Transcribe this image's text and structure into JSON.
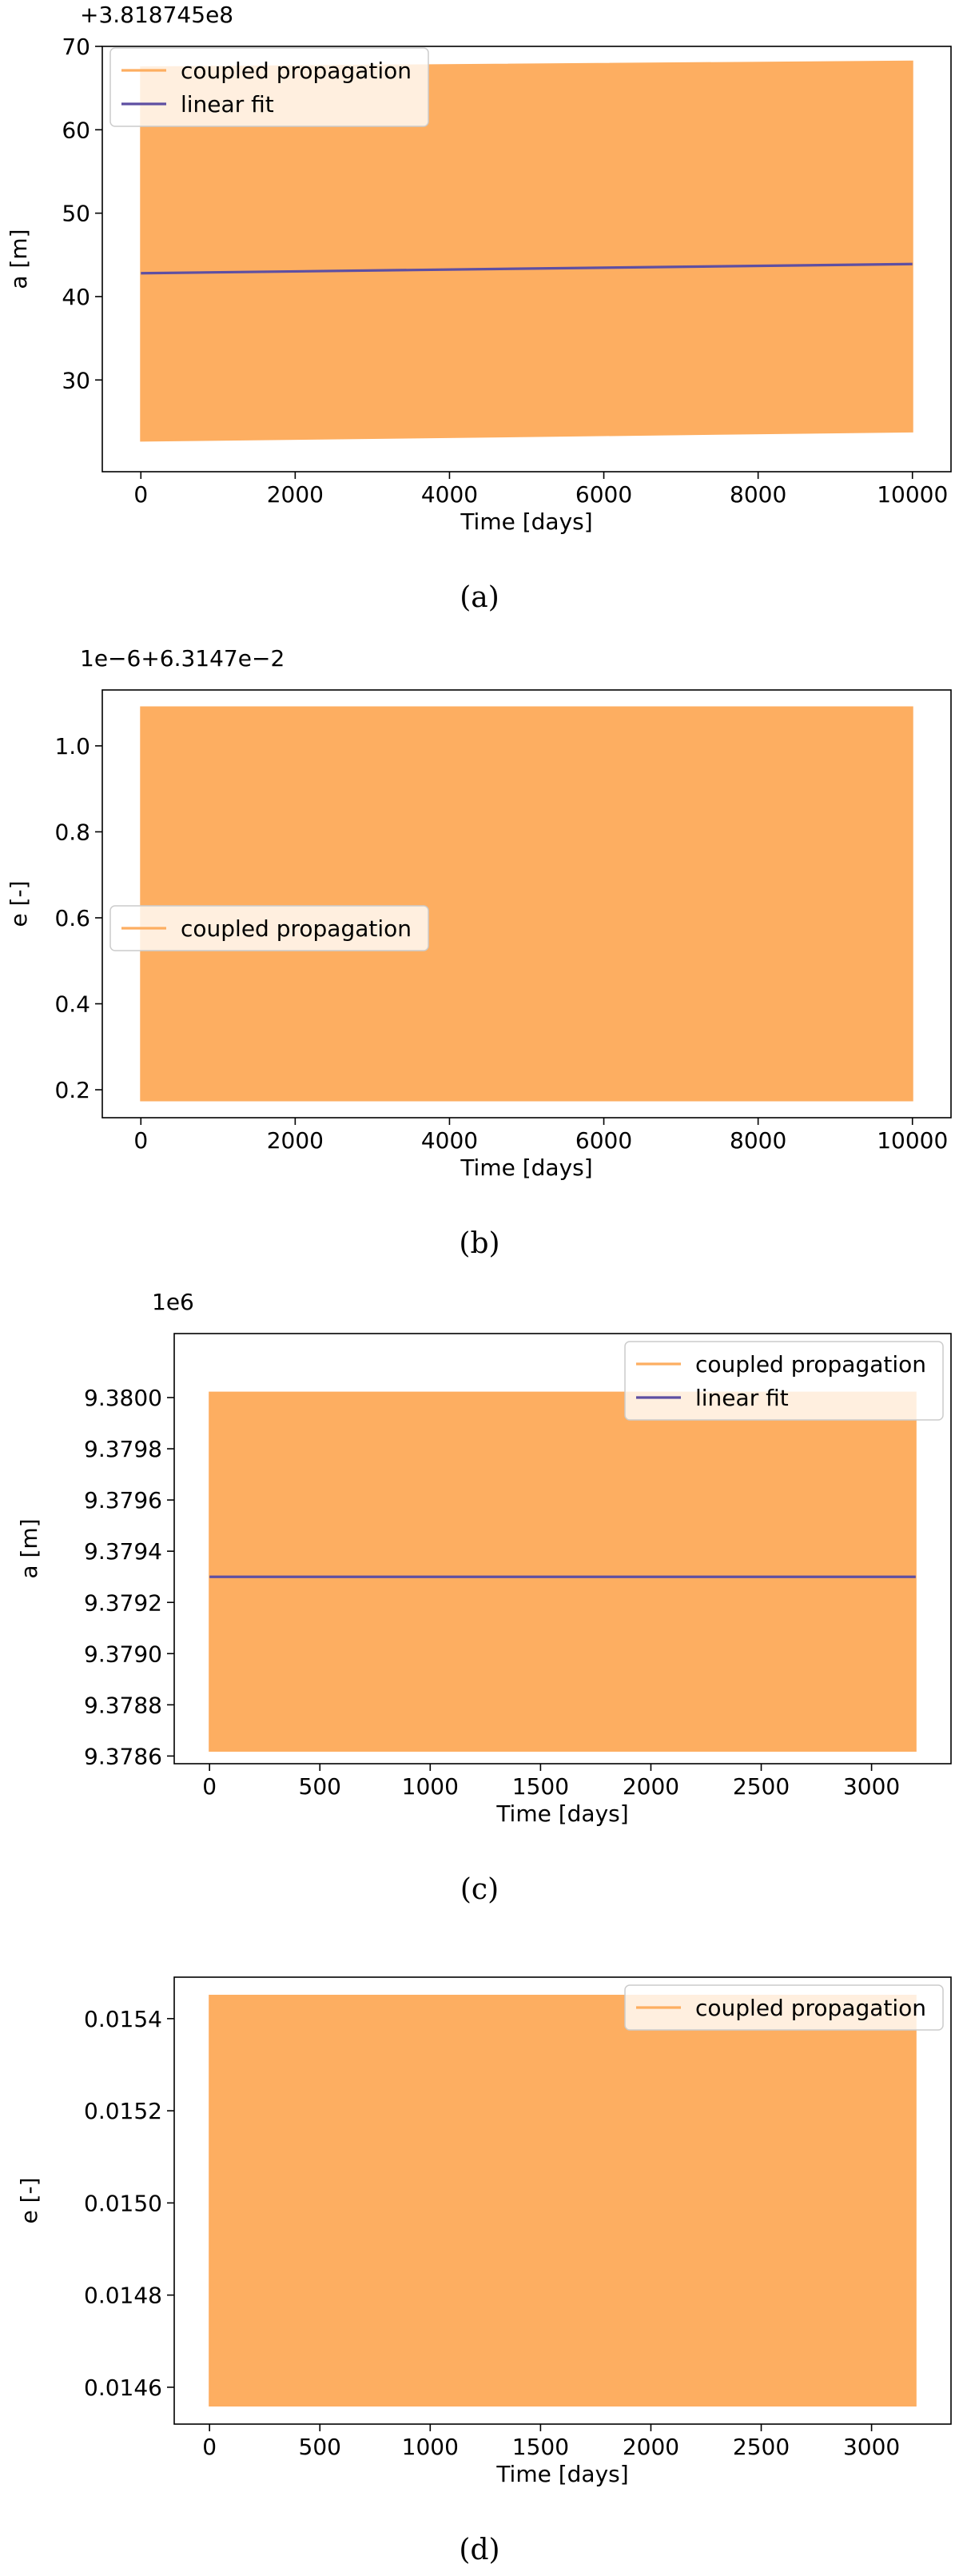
{
  "chart_data": [
    {
      "id": "a",
      "type": "area",
      "caption": "(a)",
      "offset_text": "+3.818745e8",
      "xlabel": "Time [days]",
      "ylabel": "a [m]",
      "xlim": [
        -500,
        10500
      ],
      "ylim": [
        19,
        70
      ],
      "xticks": [
        0,
        2000,
        4000,
        6000,
        8000,
        10000
      ],
      "xtick_labels": [
        "0",
        "2000",
        "4000",
        "6000",
        "8000",
        "10000"
      ],
      "yticks": [
        30,
        40,
        50,
        60,
        70
      ],
      "ytick_labels": [
        "30",
        "40",
        "50",
        "60",
        "70"
      ],
      "legend": {
        "position": "upper-left",
        "entries": [
          "coupled propagation",
          "linear fit"
        ]
      },
      "series": [
        {
          "name": "coupled propagation",
          "color": "#fdae61",
          "kind": "oscillation-band",
          "x": [
            0,
            10000
          ],
          "y_upper": [
            67.5,
            68.2
          ],
          "y_lower": [
            22.7,
            23.8
          ]
        },
        {
          "name": "linear fit",
          "color": "#5e4fa2",
          "kind": "line",
          "x": [
            0,
            10000
          ],
          "y": [
            42.8,
            43.9
          ]
        }
      ]
    },
    {
      "id": "b",
      "type": "area",
      "caption": "(b)",
      "offset_text": "1e−6+6.3147e−2",
      "xlabel": "Time [days]",
      "ylabel": "e [-]",
      "xlim": [
        -500,
        10500
      ],
      "ylim": [
        0.135,
        1.13
      ],
      "xticks": [
        0,
        2000,
        4000,
        6000,
        8000,
        10000
      ],
      "xtick_labels": [
        "0",
        "2000",
        "4000",
        "6000",
        "8000",
        "10000"
      ],
      "yticks": [
        0.2,
        0.4,
        0.6,
        0.8,
        1.0
      ],
      "ytick_labels": [
        "0.2",
        "0.4",
        "0.6",
        "0.8",
        "1.0"
      ],
      "legend": {
        "position": "center-left",
        "entries": [
          "coupled propagation"
        ]
      },
      "series": [
        {
          "name": "coupled propagation",
          "color": "#fdae61",
          "kind": "oscillation-band",
          "x": [
            0,
            10000
          ],
          "y_upper": [
            1.09,
            1.09
          ],
          "y_lower": [
            0.175,
            0.175
          ]
        }
      ]
    },
    {
      "id": "c",
      "type": "area",
      "caption": "(c)",
      "offset_text": "1e6",
      "xlabel": "Time [days]",
      "ylabel": "a [m]",
      "xlim": [
        -160,
        3360
      ],
      "ylim": [
        9.37857,
        9.38025
      ],
      "xticks": [
        0,
        500,
        1000,
        1500,
        2000,
        2500,
        3000
      ],
      "xtick_labels": [
        "0",
        "500",
        "1000",
        "1500",
        "2000",
        "2500",
        "3000"
      ],
      "yticks": [
        9.3786,
        9.3788,
        9.379,
        9.3792,
        9.3794,
        9.3796,
        9.3798,
        9.38
      ],
      "ytick_labels": [
        "9.3786",
        "9.3788",
        "9.3790",
        "9.3792",
        "9.3794",
        "9.3796",
        "9.3798",
        "9.3800"
      ],
      "legend": {
        "position": "upper-right",
        "entries": [
          "coupled propagation",
          "linear fit"
        ]
      },
      "series": [
        {
          "name": "coupled propagation",
          "color": "#fdae61",
          "kind": "oscillation-band",
          "x": [
            0,
            3200
          ],
          "y_upper": [
            9.38002,
            9.38002
          ],
          "y_lower": [
            9.37862,
            9.37862
          ]
        },
        {
          "name": "linear fit",
          "color": "#5e4fa2",
          "kind": "line",
          "x": [
            0,
            3200
          ],
          "y": [
            9.3793,
            9.3793
          ]
        }
      ]
    },
    {
      "id": "d",
      "type": "area",
      "caption": "(d)",
      "offset_text": "",
      "xlabel": "Time [days]",
      "ylabel": "e [-]",
      "xlim": [
        -160,
        3360
      ],
      "ylim": [
        0.01452,
        0.01549
      ],
      "xticks": [
        0,
        500,
        1000,
        1500,
        2000,
        2500,
        3000
      ],
      "xtick_labels": [
        "0",
        "500",
        "1000",
        "1500",
        "2000",
        "2500",
        "3000"
      ],
      "yticks": [
        0.0146,
        0.0148,
        0.015,
        0.0152,
        0.0154
      ],
      "ytick_labels": [
        "0.0146",
        "0.0148",
        "0.0150",
        "0.0152",
        "0.0154"
      ],
      "legend": {
        "position": "upper-right",
        "entries": [
          "coupled propagation"
        ]
      },
      "series": [
        {
          "name": "coupled propagation",
          "color": "#fdae61",
          "kind": "oscillation-band",
          "x": [
            0,
            3200
          ],
          "y_upper": [
            0.01545,
            0.01545
          ],
          "y_lower": [
            0.01456,
            0.01456
          ]
        }
      ]
    }
  ]
}
